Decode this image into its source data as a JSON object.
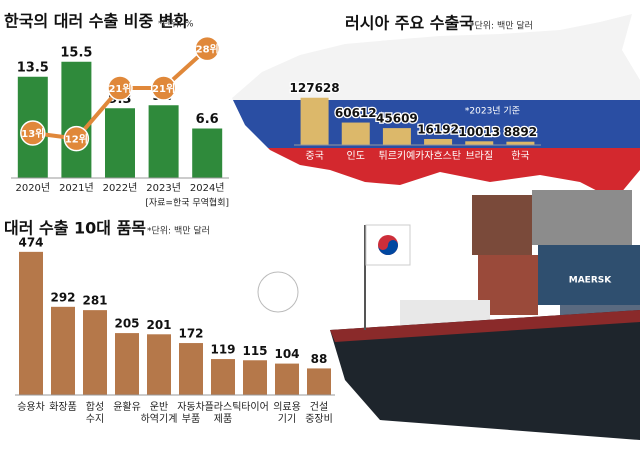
{
  "chart_data": [
    {
      "type": "bar",
      "title": "한국의 대러 수출 비중 변화",
      "unit": "*단위: %",
      "source": "[자료=한국 무역협회]",
      "categories": [
        "2020년",
        "2021년",
        "2022년",
        "2023년",
        "2024년"
      ],
      "series": [
        {
          "color": "#2f8a3b",
          "values": [
            13.5,
            15.5,
            9.3,
            9.7,
            6.6
          ]
        },
        {
          "type": "line",
          "axis": "y2",
          "color": "#e0883a",
          "values": [
            13,
            12,
            21,
            21,
            28
          ],
          "value_labels": [
            "13위",
            "12위",
            "21위",
            "21위",
            "28위"
          ]
        }
      ],
      "ylim": [
        0,
        18
      ],
      "y2lim": [
        5,
        29
      ]
    },
    {
      "type": "bar",
      "title": "러시아 주요 수출국",
      "unit": "*단위: 백만 달러",
      "note": "*2023년 기준",
      "categories": [
        "중국",
        "인도",
        "튀르키예",
        "카자흐스탄",
        "브라질",
        "한국"
      ],
      "series": [
        {
          "color": "#dcb86a",
          "values": [
            127628,
            60612,
            45609,
            16192,
            10013,
            8892
          ]
        }
      ],
      "ylim": [
        0,
        135000
      ]
    },
    {
      "type": "bar",
      "title": "대러 수출 10대 품목",
      "unit": "*단위: 백만 달러",
      "categories": [
        "승용차",
        "화장품",
        "합성\n수지",
        "윤활유",
        "운반\n하역기계",
        "자동차\n부품",
        "플라스틱\n제품",
        "타이어",
        "의료용\n기기",
        "건설\n중장비"
      ],
      "series": [
        {
          "color": "#b5784a",
          "values": [
            474,
            292,
            281,
            205,
            201,
            172,
            119,
            115,
            104,
            88
          ]
        }
      ],
      "ylim": [
        0,
        500
      ]
    }
  ]
}
